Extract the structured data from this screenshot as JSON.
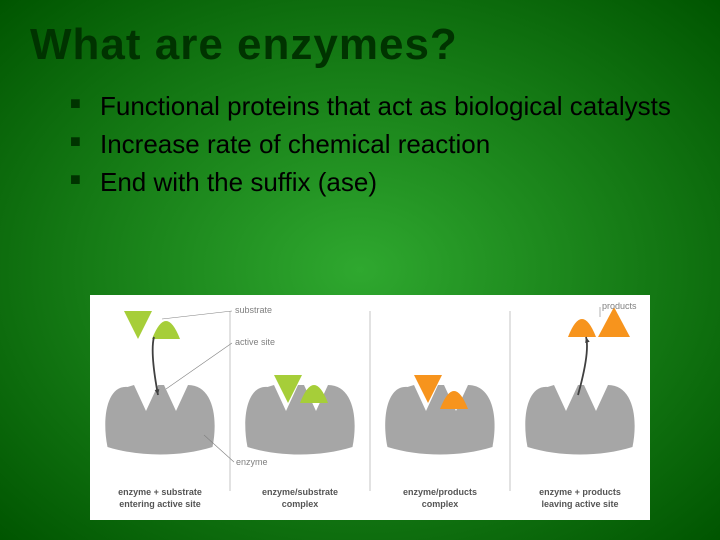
{
  "slide": {
    "background_gradient": {
      "center": "#2fa82f",
      "edge": "#005500"
    },
    "title": {
      "text": "What are enzymes?",
      "color": "#003300",
      "fontsize": 44
    },
    "bullet_color": "#003300",
    "text_color": "#000000",
    "bullets": [
      "Functional proteins that act as biological catalysts",
      "Increase rate of chemical reaction",
      "End with the suffix (ase)"
    ]
  },
  "diagram": {
    "type": "infographic",
    "background": "#ffffff",
    "enzyme_color": "#a6a6a6",
    "substrate_colors": {
      "wedge": "#a6ce39",
      "cone": "#a6ce39"
    },
    "product_colors": {
      "wedge": "#f7941d",
      "cone": "#f7941d"
    },
    "arrow_color": "#404040",
    "separator_color": "#9e9e9e",
    "label_color": "#808080",
    "caption_color": "#555555",
    "label_fontsize": 9,
    "caption_fontsize": 9,
    "labels": {
      "substrate": "substrate",
      "active_site": "active site",
      "enzyme": "enzyme",
      "products": "products"
    },
    "captions": [
      [
        "enzyme + substrate",
        "entering active site"
      ],
      [
        "enzyme/substrate",
        "complex"
      ],
      [
        "enzyme/products",
        "complex"
      ],
      [
        "enzyme + products",
        "leaving active site"
      ]
    ],
    "stages": 4
  }
}
